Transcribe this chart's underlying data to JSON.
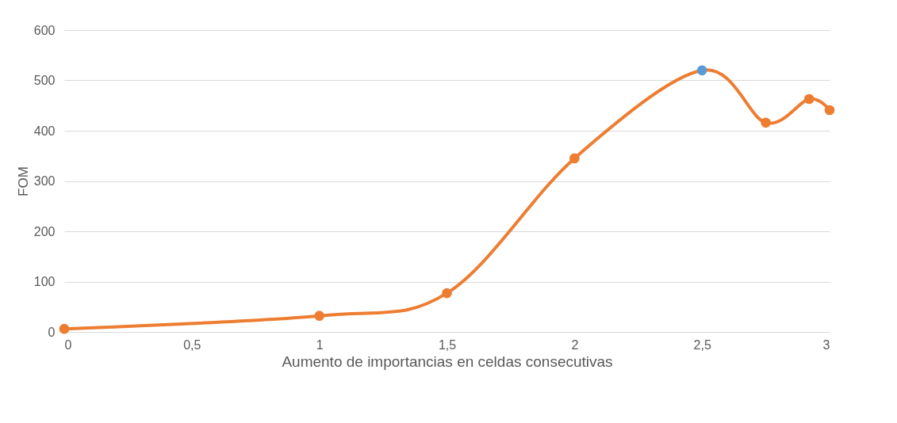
{
  "chart_data": {
    "type": "line",
    "xlabel": "Aumento de importancias en celdas consecutivas",
    "ylabel": "FOM",
    "x": [
      0,
      1,
      1.5,
      2,
      2.5,
      2.75,
      2.92,
      3
    ],
    "series": [
      {
        "color": "#ed7d31",
        "colors": [
          "#ed7d31",
          "#ed7d31",
          "#ed7d31",
          "#ed7d31",
          "#5b9bd5",
          "#ed7d31",
          "#ed7d31",
          "#ed7d31"
        ],
        "values": [
          6,
          32,
          77,
          345,
          520,
          416,
          463,
          441
        ]
      }
    ],
    "xlim": [
      0,
      3
    ],
    "xticks": [
      0,
      {
        "value": 0.5,
        "label": "0,5"
      },
      1,
      {
        "value": 1.5,
        "label": "1,5"
      },
      2,
      {
        "value": 2.5,
        "label": "2,5"
      },
      3
    ],
    "ylim": [
      0,
      600
    ],
    "yticks": [
      0,
      100,
      200,
      300,
      400,
      500,
      600
    ],
    "grid": "y",
    "marker": "circle",
    "line_style": "solid"
  }
}
